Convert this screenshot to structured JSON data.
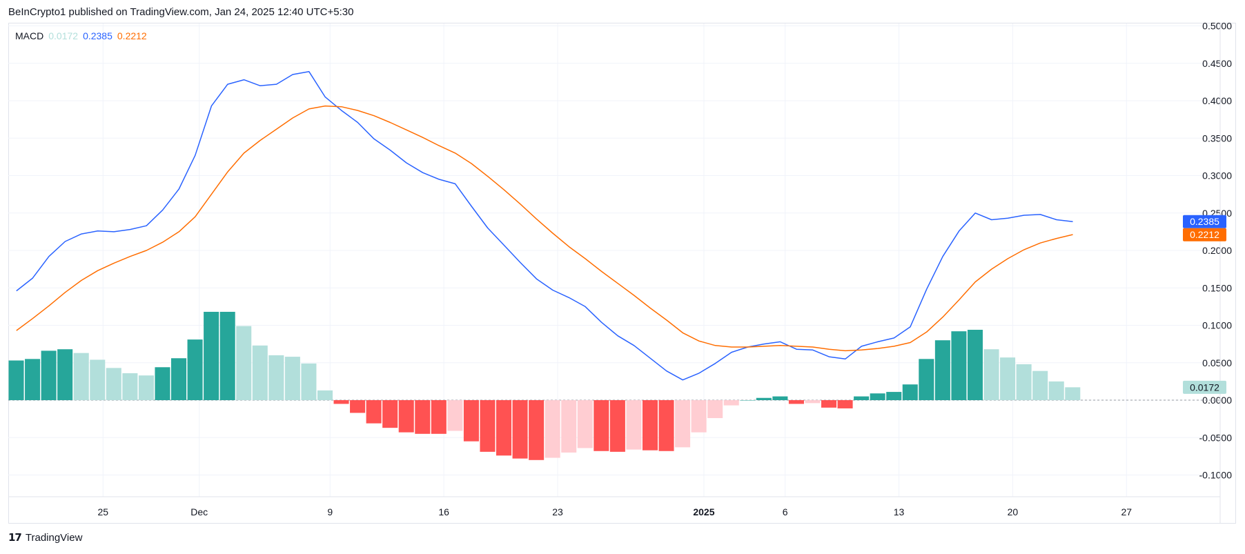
{
  "header": {
    "publisher_text": "BeInCrypto1 published on TradingView.com, Jan 24, 2025 12:40 UTC+5:30"
  },
  "legend": {
    "name": "MACD",
    "hist_value": "0.0172",
    "macd_value": "0.2385",
    "signal_value": "0.2212"
  },
  "footer": {
    "brand": "TradingView",
    "logo_glyph": "17"
  },
  "colors": {
    "macd_line": "#2962ff",
    "signal_line": "#ff6d00",
    "hist_pos_strong": "#26a69a",
    "hist_pos_weak": "#b2dfdb",
    "hist_neg_strong": "#ff5252",
    "hist_neg_weak": "#ffcdd2",
    "grid": "#f0f3fa",
    "axis_text": "#131722"
  },
  "chart_data": {
    "type": "bar",
    "title": "MACD",
    "y_axis_position": "right",
    "ylim": [
      -0.13,
      0.5
    ],
    "y_ticks": [
      "0.5000",
      "0.4500",
      "0.4000",
      "0.3500",
      "0.3000",
      "0.2500",
      "0.2000",
      "0.1500",
      "0.1000",
      "0.0500",
      "0.0000",
      "-0.0500",
      "-0.1000"
    ],
    "x_ticks": [
      {
        "index": 5.33,
        "label": "25"
      },
      {
        "index": 11.25,
        "label": "Dec"
      },
      {
        "index": 19.3,
        "label": "9"
      },
      {
        "index": 26.3,
        "label": "16"
      },
      {
        "index": 33.3,
        "label": "23"
      },
      {
        "index": 42.3,
        "label": "2025",
        "bold": true
      },
      {
        "index": 47.3,
        "label": "6"
      },
      {
        "index": 54.3,
        "label": "13"
      },
      {
        "index": 61.3,
        "label": "20"
      },
      {
        "index": 68.3,
        "label": "27"
      }
    ],
    "x_count": 66,
    "x_range": [
      -0.5,
      75.5
    ],
    "grid": true,
    "zero_line": 0,
    "series": [
      {
        "name": "MACD",
        "type": "line",
        "values": [
          0.146,
          0.163,
          0.192,
          0.212,
          0.222,
          0.226,
          0.225,
          0.228,
          0.233,
          0.254,
          0.282,
          0.327,
          0.393,
          0.422,
          0.428,
          0.42,
          0.422,
          0.435,
          0.439,
          0.405,
          0.387,
          0.371,
          0.349,
          0.334,
          0.317,
          0.304,
          0.295,
          0.289,
          0.259,
          0.23,
          0.207,
          0.184,
          0.162,
          0.147,
          0.137,
          0.125,
          0.104,
          0.086,
          0.073,
          0.056,
          0.039,
          0.027,
          0.036,
          0.049,
          0.064,
          0.071,
          0.075,
          0.078,
          0.068,
          0.067,
          0.058,
          0.055,
          0.072,
          0.078,
          0.083,
          0.098,
          0.148,
          0.192,
          0.226,
          0.25,
          0.241,
          0.243,
          0.247,
          0.248,
          0.241,
          0.2385
        ]
      },
      {
        "name": "Signal",
        "type": "line",
        "values": [
          0.093,
          0.109,
          0.126,
          0.144,
          0.16,
          0.173,
          0.183,
          0.192,
          0.2,
          0.211,
          0.225,
          0.245,
          0.275,
          0.305,
          0.33,
          0.347,
          0.362,
          0.377,
          0.389,
          0.393,
          0.392,
          0.387,
          0.38,
          0.371,
          0.361,
          0.351,
          0.34,
          0.33,
          0.316,
          0.299,
          0.281,
          0.262,
          0.242,
          0.223,
          0.205,
          0.189,
          0.172,
          0.156,
          0.14,
          0.123,
          0.107,
          0.09,
          0.079,
          0.073,
          0.071,
          0.071,
          0.072,
          0.073,
          0.072,
          0.071,
          0.068,
          0.066,
          0.067,
          0.069,
          0.072,
          0.077,
          0.091,
          0.111,
          0.134,
          0.158,
          0.175,
          0.189,
          0.201,
          0.21,
          0.216,
          0.2212
        ]
      },
      {
        "name": "Histogram",
        "type": "bar",
        "values": [
          0.053,
          0.055,
          0.066,
          0.068,
          0.063,
          0.054,
          0.043,
          0.036,
          0.033,
          0.044,
          0.056,
          0.081,
          0.118,
          0.118,
          0.099,
          0.073,
          0.06,
          0.058,
          0.049,
          0.013,
          -0.005,
          -0.017,
          -0.031,
          -0.037,
          -0.043,
          -0.045,
          -0.045,
          -0.041,
          -0.055,
          -0.069,
          -0.074,
          -0.078,
          -0.08,
          -0.077,
          -0.07,
          -0.064,
          -0.068,
          -0.069,
          -0.066,
          -0.067,
          -0.068,
          -0.063,
          -0.043,
          -0.024,
          -0.007,
          0.0,
          0.003,
          0.005,
          -0.005,
          -0.004,
          -0.01,
          -0.011,
          0.005,
          0.009,
          0.011,
          0.021,
          0.055,
          0.08,
          0.092,
          0.094,
          0.068,
          0.057,
          0.048,
          0.039,
          0.025,
          0.0172
        ]
      }
    ]
  }
}
